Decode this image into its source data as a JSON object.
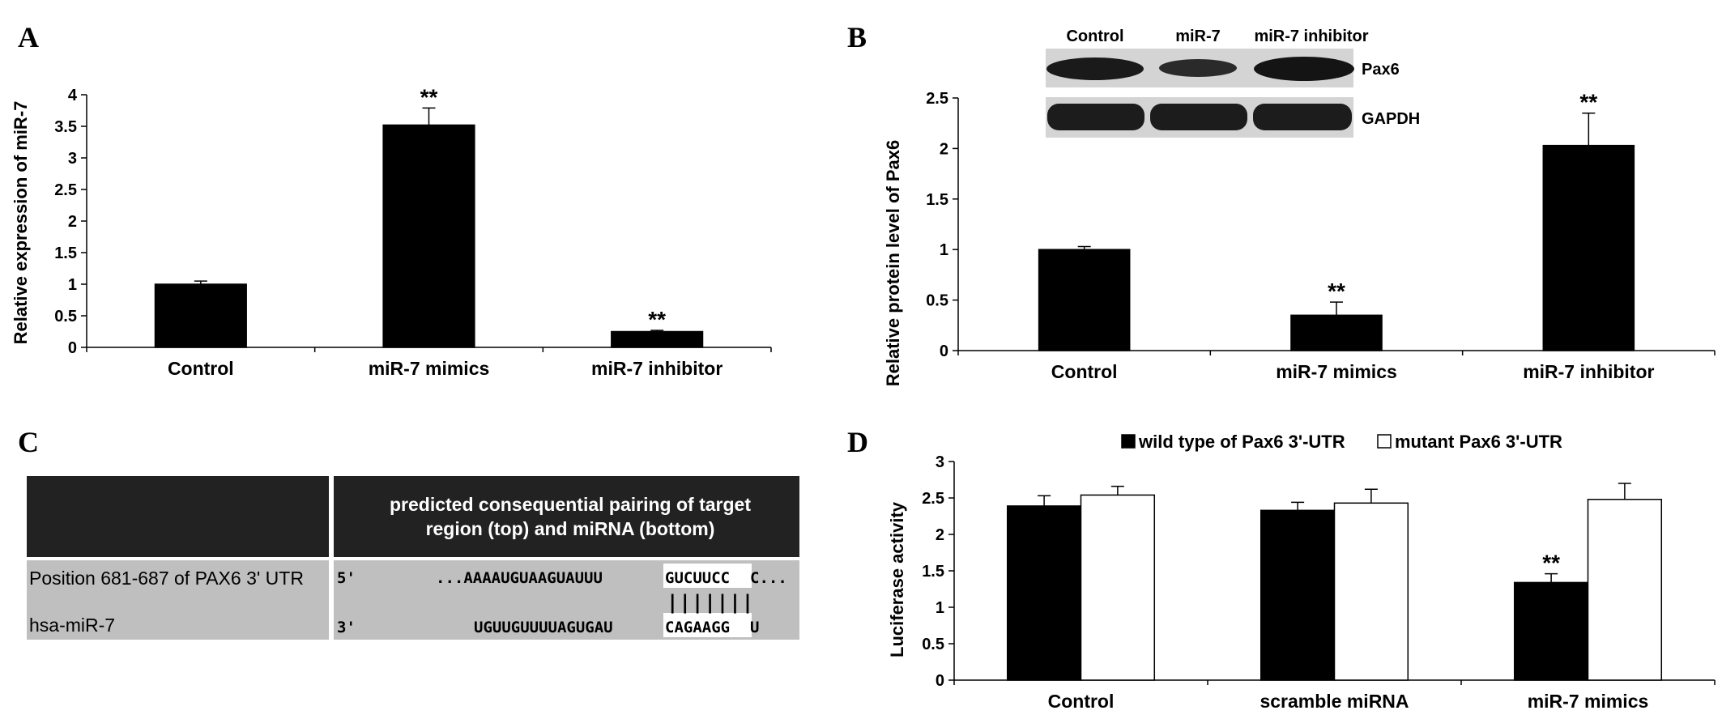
{
  "panels": {
    "a": {
      "letter": "A"
    },
    "b": {
      "letter": "B"
    },
    "c": {
      "letter": "C"
    },
    "d": {
      "letter": "D"
    }
  },
  "chart_data": [
    {
      "id": "A",
      "type": "bar",
      "title": "",
      "xlabel": "",
      "ylabel": "Relative expression of miR-7",
      "categories": [
        "Control",
        "miR-7 mimics",
        "miR-7 inhibitor"
      ],
      "values": [
        1.0,
        3.52,
        0.25
      ],
      "errors": [
        0.05,
        0.27,
        0.02
      ],
      "significance": [
        "",
        "**",
        "**"
      ],
      "ylim": [
        0,
        4
      ],
      "yticks": [
        "0",
        "0.5",
        "1",
        "1.5",
        "2",
        "2.5",
        "3",
        "3.5",
        "4"
      ],
      "bar_color": "#000000",
      "grid": false
    },
    {
      "id": "B",
      "type": "bar",
      "title": "",
      "xlabel": "",
      "ylabel": "Relative protein level of Pax6",
      "categories": [
        "Control",
        "miR-7 mimics",
        "miR-7 inhibitor"
      ],
      "values": [
        1.0,
        0.35,
        2.03
      ],
      "errors": [
        0.03,
        0.13,
        0.32
      ],
      "significance": [
        "",
        "**",
        "**"
      ],
      "ylim": [
        0,
        2.5
      ],
      "yticks": [
        "0",
        "0.5",
        "1",
        "1.5",
        "2",
        "2.5"
      ],
      "bar_color": "#000000",
      "grid": false,
      "blot": {
        "lane_labels": [
          "Control",
          "miR-7",
          "miR-7 inhibitor"
        ],
        "bands": [
          "Pax6",
          "GAPDH"
        ]
      }
    },
    {
      "id": "D",
      "type": "bar",
      "title": "",
      "xlabel": "",
      "ylabel": "Luciferase activity",
      "categories": [
        "Control",
        "scramble miRNA",
        "miR-7 mimics"
      ],
      "series": [
        {
          "name": "wild type of Pax6 3'-UTR",
          "values": [
            2.39,
            2.33,
            1.34
          ],
          "errors": [
            0.14,
            0.11,
            0.12
          ],
          "significance": [
            "",
            "",
            "**"
          ],
          "color": "#000000"
        },
        {
          "name": "mutant Pax6 3'-UTR",
          "values": [
            2.54,
            2.43,
            2.48
          ],
          "errors": [
            0.12,
            0.19,
            0.22
          ],
          "significance": [
            "",
            "",
            ""
          ],
          "color": "#ffffff"
        }
      ],
      "ylim": [
        0,
        3
      ],
      "yticks": [
        "0",
        "0.5",
        "1",
        "1.5",
        "2",
        "2.5",
        "3"
      ],
      "legend": "top",
      "grid": false
    }
  ],
  "table_c": {
    "header": "predicted consequential pairing of target region (top) and miRNA (bottom)",
    "header_lines": [
      "predicted consequential pairing of target",
      "region (top) and miRNA (bottom)"
    ],
    "rows": [
      {
        "label": "Position 681-687 of PAX6 3' UTR",
        "end": "5'",
        "prefix": "...AAAAUGUAAGUAUUU",
        "seed": "GUCUUCC",
        "suffix": "C..."
      },
      {
        "label": "hsa-miR-7",
        "end": "3'",
        "prefix": "UGUUGUUUUAGUGAU",
        "seed": "CAGAAGG",
        "suffix": "U"
      }
    ],
    "pairing": "|||||||",
    "colors": {
      "header_bg": "#222222",
      "row_bg": "#bfbfbf",
      "seed_bg": "#ffffff"
    }
  }
}
